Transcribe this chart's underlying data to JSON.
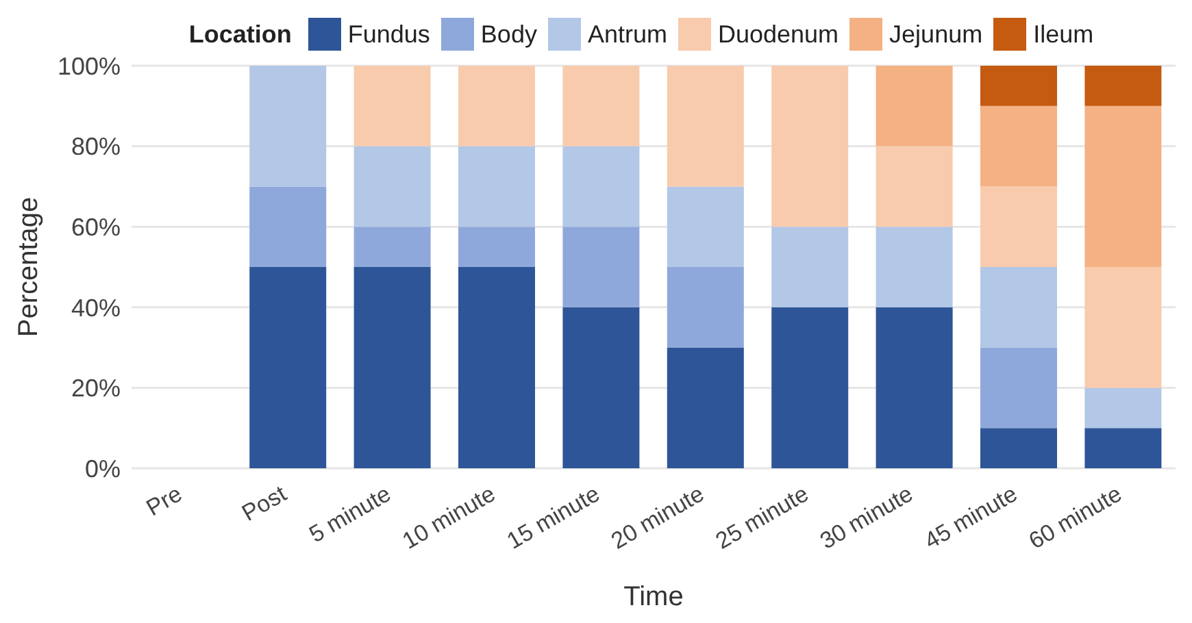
{
  "chart_data": {
    "type": "bar",
    "stacked": true,
    "xlabel": "Time",
    "ylabel": "Percentage",
    "legend_title": "Location",
    "legend": "top",
    "grid": "y",
    "categories": [
      "Pre",
      "Post",
      "5 minute",
      "10 minute",
      "15 minute",
      "20 minute",
      "25 minute",
      "30 minute",
      "45 minute",
      "60 minute"
    ],
    "ylim": [
      0,
      100
    ],
    "yticks": [
      {
        "value": 0,
        "label": "0%"
      },
      {
        "value": 20,
        "label": "20%"
      },
      {
        "value": 40,
        "label": "40%"
      },
      {
        "value": 60,
        "label": "60%"
      },
      {
        "value": 80,
        "label": "80%"
      },
      {
        "value": 100,
        "label": "100%"
      }
    ],
    "series": [
      {
        "name": "Fundus",
        "color": "#2e5597",
        "values": [
          0,
          50,
          50,
          50,
          40,
          30,
          40,
          40,
          10,
          10
        ]
      },
      {
        "name": "Body",
        "color": "#8fa8db",
        "values": [
          0,
          20,
          10,
          10,
          20,
          20,
          0,
          0,
          20,
          0
        ]
      },
      {
        "name": "Antrum",
        "color": "#b3c7e6",
        "values": [
          0,
          30,
          20,
          20,
          20,
          20,
          20,
          20,
          20,
          10
        ]
      },
      {
        "name": "Duodenum",
        "color": "#f8cbad",
        "values": [
          0,
          0,
          20,
          20,
          20,
          30,
          40,
          20,
          20,
          30
        ]
      },
      {
        "name": "Jejunum",
        "color": "#f4b183",
        "values": [
          0,
          0,
          0,
          0,
          0,
          0,
          0,
          20,
          20,
          40
        ]
      },
      {
        "name": "Ileum",
        "color": "#c55a11",
        "values": [
          0,
          0,
          0,
          0,
          0,
          0,
          0,
          0,
          10,
          10
        ]
      }
    ]
  }
}
